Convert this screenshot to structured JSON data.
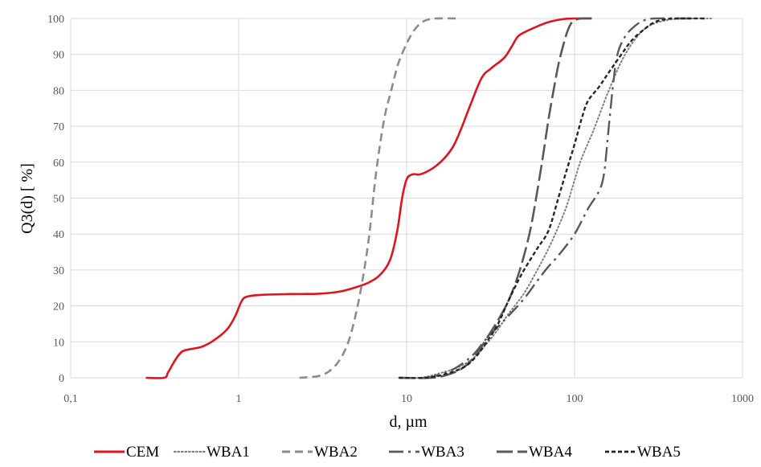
{
  "chart_data": {
    "type": "line",
    "title": "",
    "xlabel": "d, µm",
    "ylabel": "Q3(d) [ %]",
    "x_scale": "log",
    "xlim": [
      0.1,
      1000
    ],
    "ylim": [
      0,
      100
    ],
    "grid": true,
    "legend_position": "bottom",
    "x_ticks": [
      "0,1",
      "1",
      "10",
      "100",
      "1000"
    ],
    "y_ticks": [
      "0",
      "10",
      "20",
      "30",
      "40",
      "50",
      "60",
      "70",
      "80",
      "90",
      "100"
    ],
    "series": [
      {
        "name": "CEM",
        "color": "#e0141e",
        "dash": "solid",
        "points": [
          [
            0.28,
            0
          ],
          [
            0.36,
            0
          ],
          [
            0.38,
            1.5
          ],
          [
            0.42,
            5
          ],
          [
            0.46,
            7.3
          ],
          [
            0.52,
            8
          ],
          [
            0.6,
            8.6
          ],
          [
            0.7,
            10.2
          ],
          [
            0.85,
            13.4
          ],
          [
            0.95,
            17
          ],
          [
            1.05,
            21.6
          ],
          [
            1.15,
            22.7
          ],
          [
            1.4,
            23.1
          ],
          [
            2,
            23.3
          ],
          [
            3,
            23.4
          ],
          [
            4,
            24
          ],
          [
            5,
            25.2
          ],
          [
            6,
            26.6
          ],
          [
            7,
            28.8
          ],
          [
            8,
            33
          ],
          [
            8.8,
            41
          ],
          [
            9.4,
            50
          ],
          [
            10,
            55.2
          ],
          [
            10.8,
            56.6
          ],
          [
            12,
            56.6
          ],
          [
            13.5,
            57.6
          ],
          [
            15,
            59
          ],
          [
            17,
            61.4
          ],
          [
            19,
            64.5
          ],
          [
            21,
            69
          ],
          [
            24,
            76
          ],
          [
            28,
            83.5
          ],
          [
            32,
            86.2
          ],
          [
            38,
            89
          ],
          [
            42,
            92
          ],
          [
            46,
            95
          ],
          [
            52,
            96.5
          ],
          [
            60,
            97.8
          ],
          [
            70,
            99
          ],
          [
            85,
            99.8
          ],
          [
            100,
            100
          ],
          [
            125,
            100
          ]
        ]
      },
      {
        "name": "WBA1",
        "color": "#7f7f7f",
        "dash": "dotted",
        "points": [
          [
            9,
            0
          ],
          [
            12,
            0
          ],
          [
            15,
            1
          ],
          [
            20,
            2.8
          ],
          [
            25,
            5.5
          ],
          [
            30,
            9.5
          ],
          [
            35,
            13.5
          ],
          [
            40,
            17.5
          ],
          [
            50,
            23.5
          ],
          [
            60,
            30
          ],
          [
            70,
            36
          ],
          [
            80,
            42
          ],
          [
            90,
            48
          ],
          [
            100,
            55
          ],
          [
            110,
            61
          ],
          [
            130,
            69
          ],
          [
            160,
            80
          ],
          [
            200,
            90
          ],
          [
            260,
            97
          ],
          [
            350,
            99.5
          ],
          [
            500,
            100
          ],
          [
            650,
            100
          ]
        ]
      },
      {
        "name": "WBA2",
        "color": "#8c8c8c",
        "dash": "dashed",
        "points": [
          [
            2.3,
            0
          ],
          [
            3,
            0.5
          ],
          [
            3.5,
            2
          ],
          [
            4,
            5
          ],
          [
            4.5,
            10
          ],
          [
            5,
            18
          ],
          [
            5.5,
            28
          ],
          [
            6,
            40
          ],
          [
            6.5,
            55
          ],
          [
            7,
            66
          ],
          [
            7.5,
            74
          ],
          [
            8,
            79
          ],
          [
            8.5,
            84
          ],
          [
            9,
            88
          ],
          [
            10,
            93
          ],
          [
            11,
            96.5
          ],
          [
            12,
            98.5
          ],
          [
            13,
            99.5
          ],
          [
            15,
            100
          ],
          [
            20,
            100
          ]
        ]
      },
      {
        "name": "WBA3",
        "color": "#595959",
        "dash": "dashdot",
        "points": [
          [
            9,
            0
          ],
          [
            13,
            0
          ],
          [
            16,
            1
          ],
          [
            20,
            3
          ],
          [
            25,
            6.5
          ],
          [
            30,
            11
          ],
          [
            40,
            17
          ],
          [
            50,
            22
          ],
          [
            60,
            27
          ],
          [
            70,
            31
          ],
          [
            80,
            34
          ],
          [
            100,
            40
          ],
          [
            120,
            47
          ],
          [
            140,
            52
          ],
          [
            150,
            57
          ],
          [
            160,
            70
          ],
          [
            170,
            82
          ],
          [
            180,
            90
          ],
          [
            200,
            95
          ],
          [
            230,
            98
          ],
          [
            260,
            99.5
          ],
          [
            300,
            100
          ],
          [
            500,
            100
          ]
        ]
      },
      {
        "name": "WBA4",
        "color": "#595959",
        "dash": "longdash",
        "points": [
          [
            9,
            0
          ],
          [
            14,
            0
          ],
          [
            18,
            1
          ],
          [
            22,
            3
          ],
          [
            26,
            6.5
          ],
          [
            30,
            11
          ],
          [
            35,
            16
          ],
          [
            40,
            21
          ],
          [
            45,
            27
          ],
          [
            50,
            34
          ],
          [
            55,
            42
          ],
          [
            60,
            52
          ],
          [
            65,
            62
          ],
          [
            70,
            72
          ],
          [
            75,
            80
          ],
          [
            80,
            87
          ],
          [
            85,
            92
          ],
          [
            90,
            96
          ],
          [
            95,
            98.5
          ],
          [
            100,
            99.5
          ],
          [
            110,
            100
          ],
          [
            130,
            100
          ]
        ]
      },
      {
        "name": "WBA5",
        "color": "#262626",
        "dash": "shortdash",
        "points": [
          [
            9,
            0
          ],
          [
            13,
            0
          ],
          [
            17,
            1
          ],
          [
            22,
            3
          ],
          [
            26,
            6
          ],
          [
            30,
            10
          ],
          [
            35,
            15
          ],
          [
            40,
            21
          ],
          [
            45,
            26
          ],
          [
            50,
            30
          ],
          [
            60,
            36
          ],
          [
            70,
            41
          ],
          [
            80,
            50
          ],
          [
            90,
            58
          ],
          [
            100,
            65
          ],
          [
            110,
            72
          ],
          [
            120,
            77
          ],
          [
            140,
            81
          ],
          [
            160,
            85
          ],
          [
            190,
            90
          ],
          [
            220,
            94
          ],
          [
            260,
            97
          ],
          [
            300,
            99
          ],
          [
            350,
            99.8
          ],
          [
            400,
            100
          ],
          [
            600,
            100
          ]
        ]
      }
    ]
  }
}
